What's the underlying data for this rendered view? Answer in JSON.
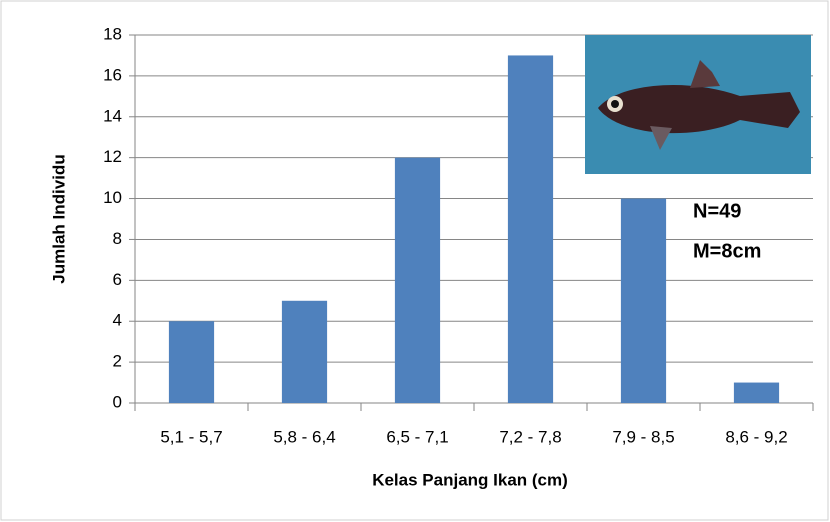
{
  "chart_data": {
    "type": "bar",
    "x_label": "Kelas Panjang Ikan (cm)",
    "y_label": "Jumlah Individu",
    "categories": [
      "5,1 - 5,7",
      "5,8 - 6,4",
      "6,5 - 7,1",
      "7,2 - 7,8",
      "7,9 - 8,5",
      "8,6 - 9,2"
    ],
    "values": [
      4,
      5,
      12,
      17,
      10,
      1
    ],
    "color": "#4f81bd",
    "ylim": [
      0,
      18
    ],
    "yticks": [
      0,
      2,
      4,
      6,
      8,
      10,
      12,
      14,
      16,
      18
    ],
    "grid": true,
    "annotations": [
      "N=49",
      "M=8cm"
    ]
  }
}
